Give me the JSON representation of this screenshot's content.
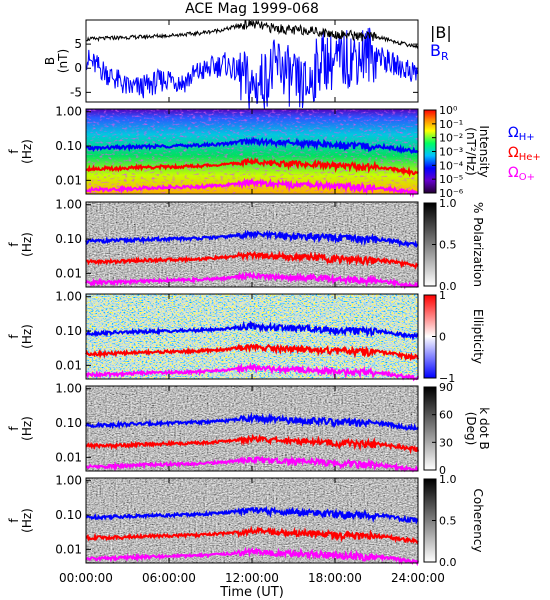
{
  "chart_data": {
    "type": "multi-panel spectrogram",
    "title": "ACE Mag 1999-068",
    "xlabel": "Time (UT)",
    "x_tick_labels": [
      "00:00:00",
      "06:00:00",
      "12:00:00",
      "18:00:00",
      "24:00:00"
    ],
    "x_range_hours": [
      0,
      24
    ],
    "f_ticks": [
      "1.00",
      "0.10",
      "0.01"
    ],
    "f_range_hz": [
      0.004,
      1.2
    ],
    "f_axis_label": [
      "f",
      "(Hz)"
    ],
    "gyro_labels": {
      "h": "Ω",
      "h_sub": "H+",
      "he": "Ω",
      "he_sub": "He+",
      "o": "Ω",
      "o_sub": "O+"
    },
    "colors": {
      "black": "#000000",
      "blue": "#0000ff",
      "red": "#ff0000",
      "magenta": "#ff00ff"
    },
    "field_panel": {
      "ylabel": [
        "B",
        "(nT)"
      ],
      "y_ticks": [
        "5",
        "0",
        "-5"
      ],
      "ylim": [
        -7,
        10
      ],
      "legend": [
        {
          "text": "|B|",
          "sub": ""
        },
        {
          "text": "B",
          "sub": "R"
        }
      ],
      "B_mag": {
        "hours": [
          0,
          2,
          4,
          6,
          8,
          10,
          11,
          12,
          13,
          14,
          15,
          16,
          17,
          18,
          19,
          20,
          21,
          22,
          23,
          24
        ],
        "values": [
          6.0,
          6.3,
          6.5,
          6.8,
          7.2,
          8.0,
          8.8,
          9.2,
          8.5,
          8.2,
          7.8,
          8.0,
          7.5,
          7.0,
          7.0,
          6.5,
          6.5,
          5.8,
          5.0,
          4.5
        ]
      },
      "B_R": {
        "hours": [
          0,
          1,
          2,
          3,
          4,
          5,
          6,
          7,
          8,
          9,
          10,
          11,
          12,
          13,
          14,
          15,
          16,
          17,
          18,
          19,
          20,
          21,
          22,
          23,
          24
        ],
        "values": [
          2,
          0,
          -2,
          -4,
          -4,
          -3,
          -2,
          -3,
          -1,
          0,
          1,
          -1,
          -4,
          -2,
          1,
          -3,
          -4,
          2,
          1,
          2,
          3,
          3,
          1,
          0,
          -1
        ]
      }
    },
    "gyrofrequency_hz": {
      "hours": [
        0,
        2,
        4,
        6,
        8,
        10,
        11,
        12,
        13,
        14,
        15,
        16,
        17,
        18,
        19,
        20,
        21,
        22,
        23,
        24
      ],
      "H_plus": [
        0.085,
        0.09,
        0.095,
        0.1,
        0.105,
        0.115,
        0.13,
        0.14,
        0.13,
        0.125,
        0.12,
        0.12,
        0.115,
        0.105,
        0.105,
        0.1,
        0.1,
        0.09,
        0.075,
        0.07
      ],
      "He_plus": [
        0.022,
        0.022,
        0.024,
        0.025,
        0.026,
        0.029,
        0.032,
        0.035,
        0.033,
        0.031,
        0.03,
        0.03,
        0.029,
        0.026,
        0.026,
        0.025,
        0.025,
        0.022,
        0.019,
        0.017
      ],
      "O_plus": [
        0.0053,
        0.0055,
        0.006,
        0.0063,
        0.0065,
        0.0072,
        0.008,
        0.0088,
        0.008,
        0.0078,
        0.0075,
        0.0075,
        0.0072,
        0.0066,
        0.0066,
        0.0062,
        0.0062,
        0.0055,
        0.0047,
        0.0044
      ]
    },
    "spectrogram_panels": [
      {
        "key": "intensity",
        "colorbar": "rainbow",
        "cb_ticks": [
          "10⁰",
          "10⁻¹",
          "10⁻²",
          "10⁻³",
          "10⁻⁴",
          "10⁻⁵",
          "10⁻⁶"
        ],
        "cb_label": [
          "Intensity",
          "(nT²/Hz)"
        ]
      },
      {
        "key": "polarization",
        "colorbar": "gray",
        "cb_ticks": [
          "1.0",
          "0.5",
          "0.0"
        ],
        "cb_label": [
          "% Polarization"
        ]
      },
      {
        "key": "ellipticity",
        "colorbar": "bwr",
        "cb_ticks": [
          "1",
          "0",
          "−1"
        ],
        "cb_label": [
          "Ellipticity"
        ]
      },
      {
        "key": "kdotb",
        "colorbar": "gray",
        "cb_ticks": [
          "90",
          "60",
          "30",
          "0"
        ],
        "cb_label": [
          "k dot B",
          "(Deg)"
        ]
      },
      {
        "key": "coherency",
        "colorbar": "gray",
        "cb_ticks": [
          "1.0",
          "0.5",
          "0.0"
        ],
        "cb_label": [
          "Coherency"
        ]
      }
    ]
  }
}
